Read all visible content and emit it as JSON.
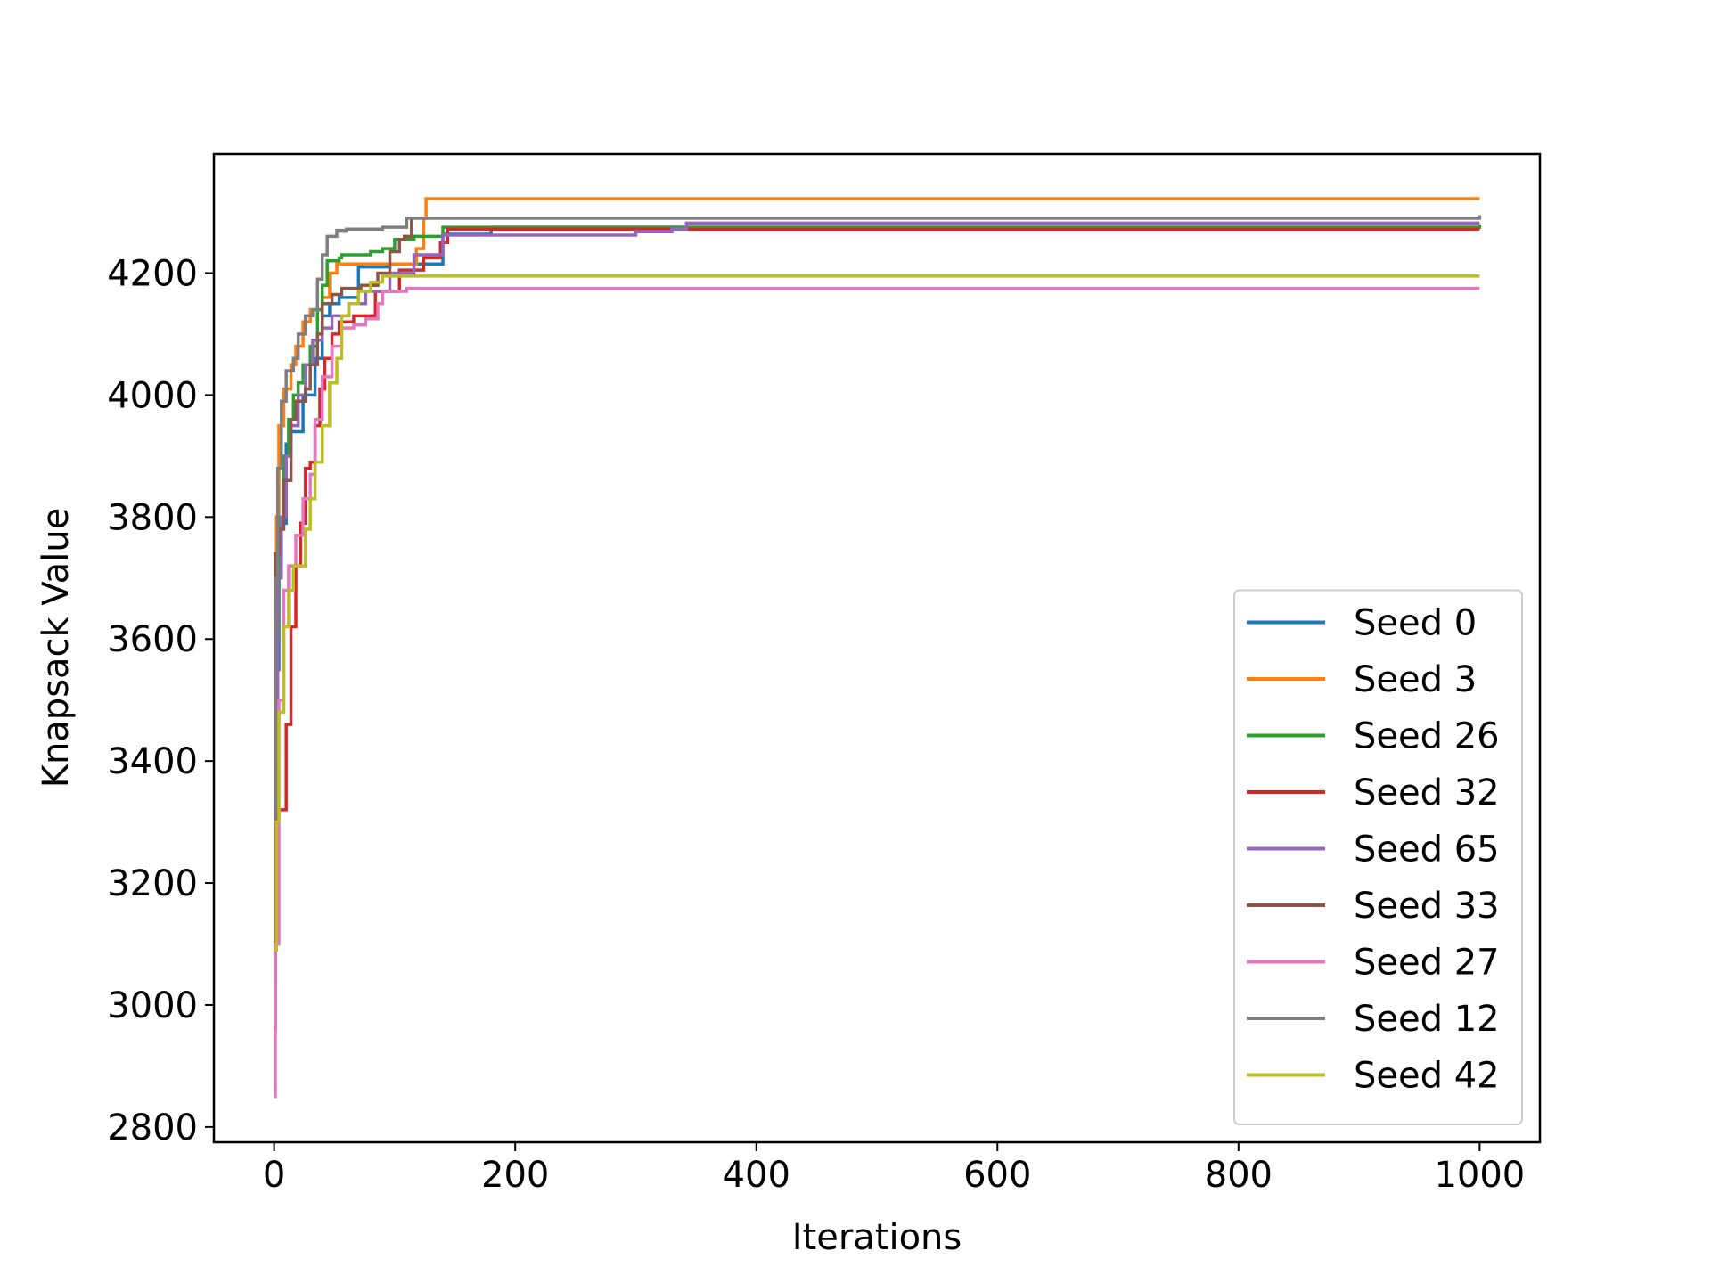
{
  "chart_data": {
    "type": "line",
    "title": "",
    "xlabel": "Iterations",
    "ylabel": "Knapsack Value",
    "xlim": [
      -50,
      1050
    ],
    "ylim": [
      2775,
      4395
    ],
    "xticks": [
      0,
      200,
      400,
      600,
      800,
      1000
    ],
    "yticks": [
      2800,
      3000,
      3200,
      3400,
      3600,
      3800,
      4000,
      4200
    ],
    "grid": false,
    "legend_position": "lower right",
    "series": [
      {
        "name": "Seed 0",
        "color": "#1f77b4",
        "points": [
          [
            0,
            2960
          ],
          [
            1,
            3300
          ],
          [
            2,
            3550
          ],
          [
            4,
            3720
          ],
          [
            6,
            3790
          ],
          [
            10,
            3920
          ],
          [
            14,
            3940
          ],
          [
            22,
            3940
          ],
          [
            24,
            4000
          ],
          [
            34,
            4060
          ],
          [
            40,
            4130
          ],
          [
            46,
            4150
          ],
          [
            54,
            4160
          ],
          [
            66,
            4160
          ],
          [
            70,
            4210
          ],
          [
            88,
            4210
          ],
          [
            96,
            4215
          ],
          [
            124,
            4215
          ],
          [
            134,
            4215
          ],
          [
            140,
            4265
          ],
          [
            180,
            4275
          ],
          [
            1000,
            4275
          ]
        ]
      },
      {
        "name": "Seed 3",
        "color": "#ff7f0e",
        "points": [
          [
            0,
            3040
          ],
          [
            1,
            3550
          ],
          [
            2,
            3800
          ],
          [
            4,
            3950
          ],
          [
            8,
            4010
          ],
          [
            14,
            4050
          ],
          [
            18,
            4080
          ],
          [
            24,
            4120
          ],
          [
            30,
            4140
          ],
          [
            40,
            4160
          ],
          [
            46,
            4200
          ],
          [
            52,
            4215
          ],
          [
            100,
            4215
          ],
          [
            118,
            4240
          ],
          [
            124,
            4290
          ],
          [
            126,
            4322
          ],
          [
            1000,
            4322
          ]
        ]
      },
      {
        "name": "Seed 26",
        "color": "#2ca02c",
        "points": [
          [
            0,
            2960
          ],
          [
            1,
            3300
          ],
          [
            2,
            3600
          ],
          [
            4,
            3800
          ],
          [
            8,
            3900
          ],
          [
            12,
            3960
          ],
          [
            16,
            4000
          ],
          [
            20,
            4020
          ],
          [
            24,
            4050
          ],
          [
            30,
            4080
          ],
          [
            36,
            4140
          ],
          [
            40,
            4180
          ],
          [
            44,
            4220
          ],
          [
            54,
            4225
          ],
          [
            56,
            4230
          ],
          [
            80,
            4235
          ],
          [
            90,
            4240
          ],
          [
            100,
            4255
          ],
          [
            116,
            4260
          ],
          [
            140,
            4275
          ],
          [
            1000,
            4280
          ]
        ]
      },
      {
        "name": "Seed 32",
        "color": "#d62728",
        "points": [
          [
            0,
            3100
          ],
          [
            3,
            3320
          ],
          [
            8,
            3320
          ],
          [
            10,
            3460
          ],
          [
            14,
            3620
          ],
          [
            18,
            3720
          ],
          [
            22,
            3790
          ],
          [
            26,
            3880
          ],
          [
            30,
            3890
          ],
          [
            34,
            3950
          ],
          [
            38,
            4010
          ],
          [
            42,
            4060
          ],
          [
            48,
            4100
          ],
          [
            54,
            4120
          ],
          [
            66,
            4130
          ],
          [
            84,
            4170
          ],
          [
            104,
            4205
          ],
          [
            124,
            4225
          ],
          [
            138,
            4250
          ],
          [
            144,
            4272
          ],
          [
            1000,
            4272
          ]
        ]
      },
      {
        "name": "Seed 65",
        "color": "#9467bd",
        "points": [
          [
            0,
            3000
          ],
          [
            1,
            3400
          ],
          [
            3,
            3700
          ],
          [
            6,
            3800
          ],
          [
            10,
            3900
          ],
          [
            14,
            3950
          ],
          [
            20,
            4000
          ],
          [
            26,
            4050
          ],
          [
            32,
            4090
          ],
          [
            40,
            4110
          ],
          [
            48,
            4130
          ],
          [
            62,
            4150
          ],
          [
            76,
            4170
          ],
          [
            96,
            4200
          ],
          [
            116,
            4230
          ],
          [
            140,
            4262
          ],
          [
            300,
            4268
          ],
          [
            330,
            4272
          ],
          [
            342,
            4282
          ],
          [
            1000,
            4282
          ]
        ]
      },
      {
        "name": "Seed 33",
        "color": "#8c564b",
        "points": [
          [
            0,
            3100
          ],
          [
            1,
            3740
          ],
          [
            4,
            3780
          ],
          [
            8,
            3860
          ],
          [
            14,
            3960
          ],
          [
            18,
            3990
          ],
          [
            26,
            4010
          ],
          [
            30,
            4050
          ],
          [
            36,
            4100
          ],
          [
            40,
            4150
          ],
          [
            48,
            4165
          ],
          [
            56,
            4175
          ],
          [
            72,
            4180
          ],
          [
            86,
            4200
          ],
          [
            96,
            4235
          ],
          [
            104,
            4255
          ],
          [
            108,
            4260
          ],
          [
            114,
            4290
          ],
          [
            1000,
            4290
          ]
        ]
      },
      {
        "name": "Seed 27",
        "color": "#e377c2",
        "points": [
          [
            0,
            2850
          ],
          [
            1,
            3100
          ],
          [
            4,
            3500
          ],
          [
            8,
            3680
          ],
          [
            12,
            3720
          ],
          [
            18,
            3770
          ],
          [
            24,
            3830
          ],
          [
            30,
            3870
          ],
          [
            34,
            3960
          ],
          [
            40,
            4030
          ],
          [
            48,
            4080
          ],
          [
            56,
            4110
          ],
          [
            66,
            4115
          ],
          [
            76,
            4125
          ],
          [
            86,
            4150
          ],
          [
            90,
            4170
          ],
          [
            110,
            4175
          ],
          [
            1000,
            4175
          ]
        ]
      },
      {
        "name": "Seed 12",
        "color": "#7f7f7f",
        "points": [
          [
            0,
            3300
          ],
          [
            1,
            3700
          ],
          [
            3,
            3880
          ],
          [
            6,
            3990
          ],
          [
            10,
            4040
          ],
          [
            16,
            4060
          ],
          [
            20,
            4100
          ],
          [
            26,
            4130
          ],
          [
            32,
            4140
          ],
          [
            36,
            4190
          ],
          [
            40,
            4230
          ],
          [
            44,
            4260
          ],
          [
            52,
            4270
          ],
          [
            60,
            4272
          ],
          [
            90,
            4275
          ],
          [
            110,
            4290
          ],
          [
            1000,
            4295
          ]
        ]
      },
      {
        "name": "Seed 42",
        "color": "#bcbd22",
        "points": [
          [
            0,
            3090
          ],
          [
            2,
            3300
          ],
          [
            4,
            3480
          ],
          [
            8,
            3620
          ],
          [
            12,
            3680
          ],
          [
            16,
            3720
          ],
          [
            26,
            3780
          ],
          [
            30,
            3830
          ],
          [
            34,
            3890
          ],
          [
            40,
            3950
          ],
          [
            46,
            4020
          ],
          [
            52,
            4060
          ],
          [
            56,
            4130
          ],
          [
            62,
            4150
          ],
          [
            70,
            4170
          ],
          [
            80,
            4185
          ],
          [
            90,
            4195
          ],
          [
            1000,
            4195
          ]
        ]
      }
    ]
  }
}
